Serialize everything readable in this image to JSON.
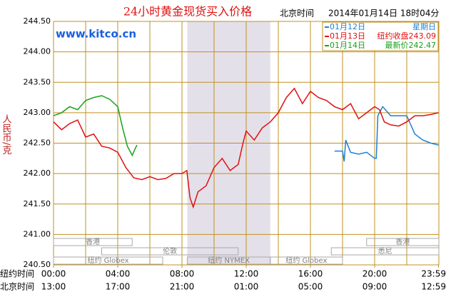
{
  "chart_data": {
    "type": "line",
    "title": "24小时黄金现货买入价格",
    "subtitle_label": "北京时间",
    "subtitle_date": "2014年01月14日 18时04分",
    "watermark": "www.kitco.cn",
    "y_label": "人民币/克",
    "x_row_labels": [
      "纽约时间",
      "北京时间"
    ],
    "xlim": [
      0,
      24
    ],
    "ylim": [
      240.5,
      244.5
    ],
    "grid_x_step": 2,
    "grid": true,
    "xticks": [
      {
        "value": 0,
        "label": "00:00"
      },
      {
        "value": 4,
        "label": "04:00"
      },
      {
        "value": 8,
        "label": "08:00"
      },
      {
        "value": 12,
        "label": "12:00"
      },
      {
        "value": 16,
        "label": "16:00"
      },
      {
        "value": 20,
        "label": "20:00"
      },
      {
        "value": 23.98,
        "label": "23:59"
      }
    ],
    "x_secondary_labels": [
      "13:00",
      "17:00",
      "21:00",
      "01:00",
      "05:00",
      "09:00",
      "12:59"
    ],
    "yticks": [
      {
        "value": 244.5,
        "label": "244.50"
      },
      {
        "value": 244,
        "label": "244.00"
      },
      {
        "value": 243.5,
        "label": "243.50"
      },
      {
        "value": 243,
        "label": "243.00"
      },
      {
        "value": 242.5,
        "label": "242.50"
      },
      {
        "value": 242,
        "label": "242.00"
      },
      {
        "value": 241.5,
        "label": "241.50"
      },
      {
        "value": 241,
        "label": "241.00"
      },
      {
        "value": 240.5,
        "label": "240.50"
      }
    ],
    "shaded_range": [
      8.33,
      13.5
    ],
    "session_rows": [
      [
        {
          "name": "香港",
          "start": 0,
          "end": 4.9
        },
        {
          "name": "香港",
          "start": 19.5,
          "end": 24
        }
      ],
      [
        {
          "name": "伦敦",
          "start": 3,
          "end": 11.5
        },
        {
          "name": "悉尼",
          "start": 17.3,
          "end": 24
        }
      ],
      [
        {
          "name": "纽约 Globex",
          "start": 0,
          "end": 6.8
        },
        {
          "name": "纽约 NYMEX",
          "start": 8.33,
          "end": 13.5
        },
        {
          "name": "纽约 Globex",
          "start": 13.5,
          "end": 18
        }
      ]
    ],
    "series": [
      {
        "name": "01月12日",
        "note": "星期日",
        "color": "#1e7fd6",
        "x": [
          17.5,
          18.0,
          18.1,
          18.2,
          18.5,
          19,
          19.5,
          20,
          20.1,
          20.2,
          20.5,
          21,
          21.5,
          22,
          22.5,
          23,
          23.5,
          23.98
        ],
        "values": [
          242.37,
          242.37,
          242.2,
          242.55,
          242.35,
          242.32,
          242.35,
          242.25,
          242.25,
          242.95,
          243.1,
          242.95,
          242.95,
          242.95,
          242.65,
          242.55,
          242.5,
          242.47
        ]
      },
      {
        "name": "01月13日",
        "note": "纽约收盘243.09",
        "color": "#e01010",
        "x": [
          0,
          0.5,
          1,
          1.5,
          2,
          2.5,
          3,
          3.5,
          4,
          4.5,
          5,
          5.5,
          6,
          6.5,
          7,
          7.5,
          8,
          8.3,
          8.5,
          8.7,
          9,
          9.5,
          10,
          10.5,
          11,
          11.5,
          11.8,
          12,
          12.5,
          13,
          13.5,
          14,
          14.5,
          15,
          15.5,
          16,
          16.5,
          17,
          17.5,
          18,
          18.5,
          19,
          19.5,
          20,
          20.3,
          20.6,
          21,
          21.5,
          22,
          22.5,
          23,
          23.5,
          23.98
        ],
        "values": [
          242.85,
          242.72,
          242.82,
          242.88,
          242.6,
          242.65,
          242.45,
          242.42,
          242.35,
          242.1,
          241.93,
          241.9,
          241.95,
          241.9,
          241.92,
          242.0,
          242.0,
          242.05,
          241.6,
          241.45,
          241.7,
          241.8,
          242.1,
          242.25,
          242.05,
          242.15,
          242.5,
          242.7,
          242.55,
          242.75,
          242.85,
          243.0,
          243.25,
          243.4,
          243.15,
          243.35,
          243.25,
          243.2,
          243.1,
          243.05,
          243.15,
          242.9,
          243.0,
          243.1,
          243.05,
          242.85,
          242.8,
          242.78,
          242.85,
          242.95,
          242.95,
          242.97,
          243.0
        ]
      },
      {
        "name": "01月14日",
        "note": "最新价242.47",
        "color": "#1aa01a",
        "x": [
          0,
          0.5,
          1,
          1.5,
          2,
          2.5,
          3,
          3.5,
          4,
          4.3,
          4.6,
          4.9,
          5.1,
          5.2
        ],
        "values": [
          242.95,
          243.0,
          243.1,
          243.05,
          243.2,
          243.25,
          243.28,
          243.22,
          243.1,
          242.75,
          242.45,
          242.3,
          242.42,
          242.47
        ]
      }
    ]
  }
}
